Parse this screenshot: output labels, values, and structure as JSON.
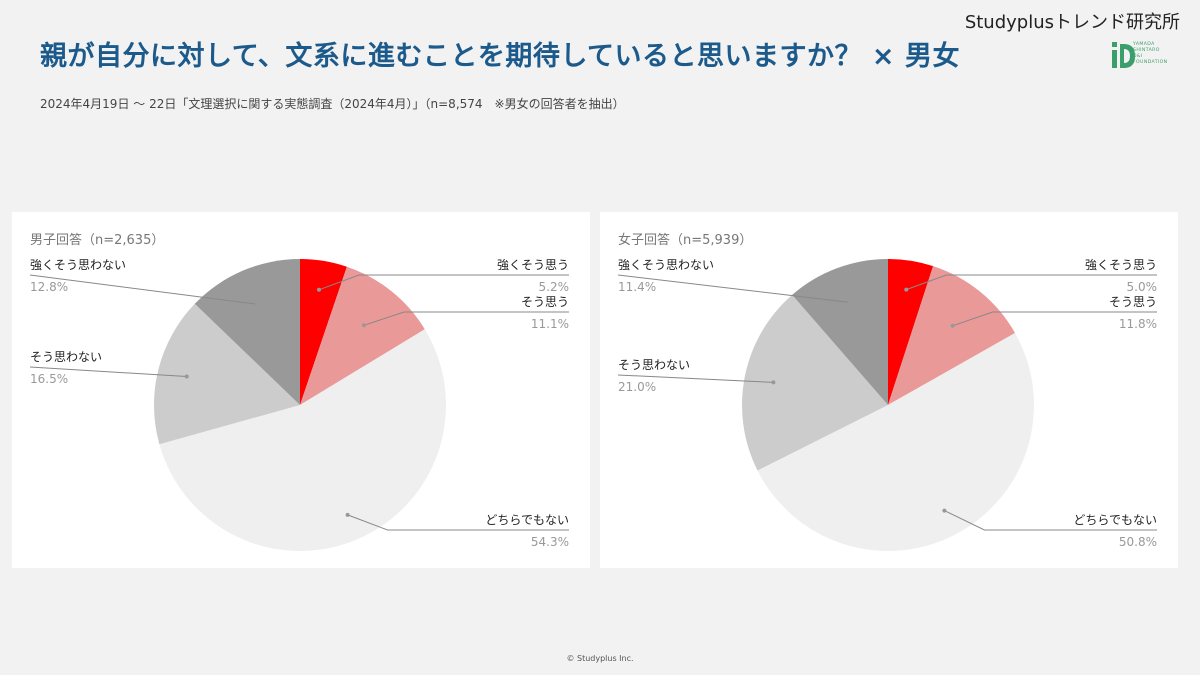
{
  "header": {
    "title": "親が自分に対して、文系に進むことを期待していると思いますか？ × 男女",
    "subtitle": "2024年4月19日 〜 22日「文理選択に関する実態調査（2024年4月）」（n=8,574　※男女の回答者を抽出）",
    "brand": "Studyplusトレンド研究所",
    "logo_text": "YAMADA\nSHINTARO\nD&I\nFOUNDATION",
    "logo_color": "#3a9f6b",
    "title_color": "#1c5a8c"
  },
  "footer": {
    "copyright": "© Studyplus Inc."
  },
  "chart_data": [
    {
      "type": "pie",
      "title": "男子回答（n=2,635）",
      "labels": [
        "強くそう思う",
        "そう思う",
        "どちらでもない",
        "そう思わない",
        "強くそう思わない"
      ],
      "values": [
        5.2,
        11.1,
        54.3,
        16.5,
        12.8
      ],
      "value_labels": [
        "5.2%",
        "11.1%",
        "54.3%",
        "16.5%",
        "12.8%"
      ],
      "colors": [
        "#ff0000",
        "#ea9999",
        "#efefef",
        "#cccccc",
        "#999999"
      ]
    },
    {
      "type": "pie",
      "title": "女子回答（n=5,939）",
      "labels": [
        "強くそう思う",
        "そう思う",
        "どちらでもない",
        "そう思わない",
        "強くそう思わない"
      ],
      "values": [
        5.0,
        11.8,
        50.8,
        21.0,
        11.4
      ],
      "value_labels": [
        "5.0%",
        "11.8%",
        "50.8%",
        "21.0%",
        "11.4%"
      ],
      "colors": [
        "#ff0000",
        "#ea9999",
        "#efefef",
        "#cccccc",
        "#999999"
      ]
    }
  ]
}
